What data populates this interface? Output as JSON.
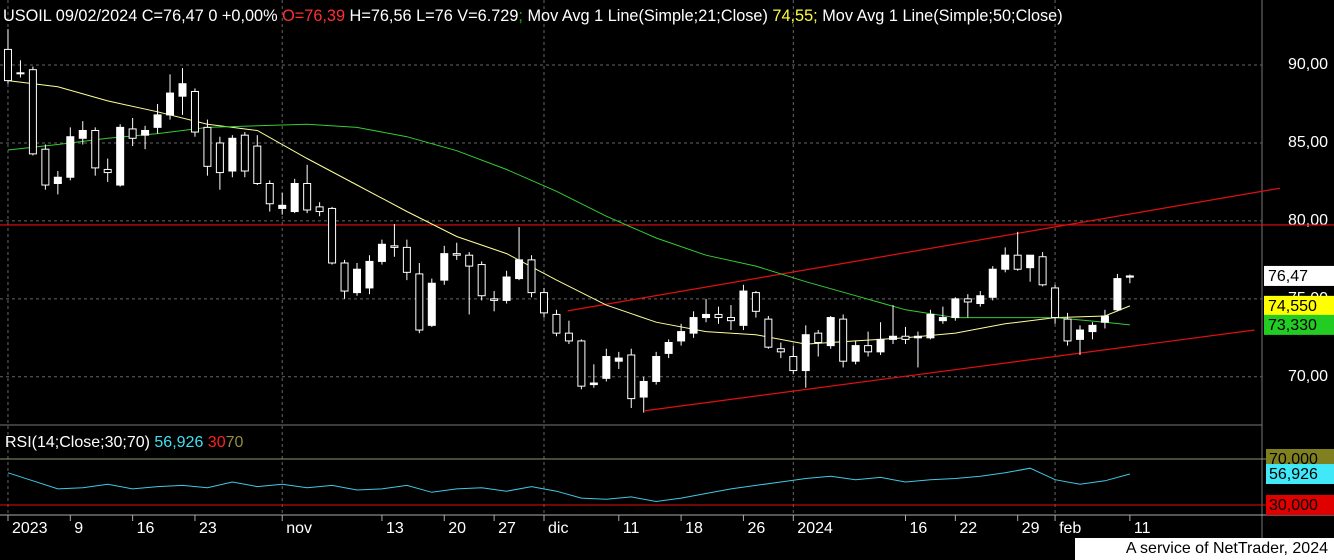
{
  "chart_data": {
    "type": "candlestick",
    "header": [
      {
        "text": "USOIL 09/02/2024 C=76,47 0 +0,00% ",
        "color": "#ffffff"
      },
      {
        "text": "O=76,39",
        "color": "#ff3030"
      },
      {
        "text": " H=76,56 L=76 V=6.729",
        "color": "#ffffff"
      },
      {
        "text": ";",
        "color": "#00c000"
      },
      {
        "text": " Mov Avg 1 Line(Simple;21;Close) ",
        "color": "#ffffff"
      },
      {
        "text": "74,55",
        "color": "#ffff40"
      },
      {
        "text": ";",
        "color": "#ffff40"
      },
      {
        "text": " Mov Avg 1 Line(Simple;50;Close)",
        "color": "#ffffff"
      }
    ],
    "open": [
      91.0,
      89.5,
      89.7,
      84.6,
      82.4,
      82.8,
      85.3,
      85.8,
      83.3,
      82.3,
      85.9,
      85.5,
      86.0,
      86.8,
      88.0,
      88.3,
      86.0,
      85.0,
      83.2,
      85.5,
      84.8,
      82.4,
      80.8,
      80.6,
      82.4,
      80.9,
      80.8,
      77.3,
      75.4,
      75.7,
      77.4,
      78.4,
      78.3,
      76.6,
      73.3,
      76.2,
      77.9,
      77.8,
      77.2,
      75.0,
      74.9,
      76.3,
      77.5,
      75.4,
      74.0,
      72.8,
      72.3,
      69.5,
      69.9,
      71.0,
      71.4,
      68.7,
      69.7,
      71.5,
      72.3,
      72.8,
      73.8,
      74.0,
      73.8,
      73.3,
      75.4,
      73.7,
      71.8,
      71.3,
      70.4,
      72.8,
      72.0,
      73.7,
      71.0,
      72.0,
      71.6,
      72.4,
      72.6,
      72.5,
      72.5,
      73.6,
      73.8,
      75.0,
      74.7,
      75.1,
      76.9,
      77.8,
      77.0,
      77.7,
      75.7,
      73.7,
      72.4,
      72.9,
      73.5,
      74.3,
      76.39
    ],
    "high": [
      92.3,
      90.3,
      89.9,
      84.9,
      83.2,
      86.0,
      86.4,
      86.0,
      84.0,
      86.2,
      86.6,
      86.1,
      87.5,
      89.4,
      89.8,
      88.5,
      86.5,
      85.4,
      85.5,
      85.7,
      85.5,
      82.6,
      81.8,
      82.7,
      83.6,
      81.2,
      80.9,
      77.5,
      77.3,
      77.8,
      78.8,
      79.8,
      78.8,
      77.3,
      76.3,
      78.4,
      78.6,
      78.0,
      77.4,
      75.5,
      76.8,
      79.6,
      77.8,
      75.7,
      74.3,
      73.6,
      72.4,
      70.8,
      71.8,
      71.6,
      71.8,
      70.0,
      71.6,
      72.4,
      73.4,
      74.2,
      75.0,
      74.5,
      74.6,
      75.9,
      75.5,
      73.9,
      72.2,
      72.0,
      73.3,
      73.0,
      73.9,
      74.0,
      72.3,
      72.9,
      73.5,
      74.6,
      73.2,
      72.9,
      74.3,
      74.5,
      75.1,
      75.3,
      75.5,
      77.1,
      78.3,
      79.3,
      77.8,
      78.0,
      75.9,
      74.1,
      73.3,
      73.5,
      74.3,
      76.6,
      76.56
    ],
    "low": [
      88.8,
      89.2,
      84.2,
      82.0,
      81.7,
      82.6,
      84.9,
      82.9,
      82.5,
      82.2,
      84.8,
      84.6,
      85.6,
      86.5,
      86.8,
      85.4,
      82.9,
      82.0,
      82.8,
      82.8,
      82.3,
      80.6,
      80.4,
      80.5,
      80.5,
      80.3,
      77.2,
      75.0,
      75.2,
      75.3,
      77.2,
      77.7,
      76.2,
      72.8,
      73.2,
      75.9,
      77.5,
      74.0,
      74.9,
      74.2,
      74.7,
      76.2,
      75.1,
      73.8,
      72.6,
      72.1,
      69.2,
      69.3,
      69.7,
      70.5,
      68.0,
      67.7,
      69.5,
      71.2,
      72.0,
      72.5,
      73.5,
      73.4,
      73.0,
      73.0,
      73.8,
      71.8,
      71.2,
      70.2,
      69.3,
      71.3,
      71.8,
      70.6,
      70.8,
      71.3,
      71.4,
      72.1,
      72.1,
      70.6,
      72.4,
      73.4,
      73.6,
      73.8,
      74.5,
      74.9,
      76.7,
      76.8,
      76.1,
      75.8,
      73.4,
      72.0,
      71.4,
      72.4,
      73.1,
      74.2,
      76
    ],
    "close": [
      89.0,
      89.5,
      84.3,
      82.3,
      82.8,
      85.4,
      85.8,
      83.4,
      83.1,
      86.0,
      85.3,
      85.8,
      86.8,
      88.2,
      88.8,
      85.7,
      83.5,
      83.1,
      85.3,
      83.2,
      82.4,
      81.1,
      81.0,
      82.4,
      80.7,
      80.6,
      77.3,
      75.5,
      76.9,
      77.4,
      78.5,
      78.3,
      76.7,
      73.0,
      76.0,
      77.9,
      77.8,
      77.1,
      75.2,
      74.9,
      76.4,
      77.5,
      75.4,
      74.1,
      72.8,
      72.3,
      69.4,
      69.6,
      71.3,
      71.2,
      68.6,
      69.7,
      71.3,
      72.2,
      72.9,
      73.8,
      74.0,
      73.8,
      73.6,
      75.5,
      74.2,
      71.9,
      71.6,
      70.4,
      72.7,
      72.2,
      73.8,
      71.0,
      72.0,
      71.6,
      72.4,
      72.6,
      72.4,
      72.6,
      74.0,
      73.8,
      75.0,
      74.8,
      75.2,
      76.9,
      77.8,
      76.9,
      77.8,
      75.9,
      73.8,
      72.3,
      73.0,
      73.3,
      73.9,
      76.3,
      76.47
    ],
    "xlim": [
      -0.64,
      100.6
    ],
    "xticks": [
      {
        "value": 0,
        "label": "2023",
        "major": true
      },
      {
        "value": 5,
        "label": "9"
      },
      {
        "value": 10,
        "label": "16"
      },
      {
        "value": 15,
        "label": "23"
      },
      {
        "value": 22,
        "label": "nov",
        "major": true
      },
      {
        "value": 30,
        "label": "13"
      },
      {
        "value": 35,
        "label": "20"
      },
      {
        "value": 39,
        "label": "27"
      },
      {
        "value": 43,
        "label": "dic",
        "major": true
      },
      {
        "value": 49,
        "label": "11"
      },
      {
        "value": 54,
        "label": "18"
      },
      {
        "value": 59,
        "label": "26"
      },
      {
        "value": 63,
        "label": "2024",
        "major": true
      },
      {
        "value": 72,
        "label": "16"
      },
      {
        "value": 76,
        "label": "22"
      },
      {
        "value": 81,
        "label": "29"
      },
      {
        "value": 84,
        "label": "feb",
        "major": true
      },
      {
        "value": 90,
        "label": "11"
      }
    ],
    "ylim": [
      67.1,
      94.17
    ],
    "yticks": [
      {
        "value": 70,
        "label": "70,00"
      },
      {
        "value": 75,
        "label": "75,00"
      },
      {
        "value": 80,
        "label": "80,00"
      },
      {
        "value": 85,
        "label": "85,00"
      },
      {
        "value": 90,
        "label": "90,00"
      }
    ],
    "grid": true,
    "series": [
      {
        "color": "#ffff99",
        "x": [
          0,
          4,
          8,
          12,
          16,
          20,
          24,
          28,
          32,
          36,
          40,
          44,
          48,
          52,
          56,
          60,
          64,
          68,
          72,
          76,
          80,
          84,
          88,
          90
        ],
        "values": [
          89.0,
          88.6,
          87.7,
          87.0,
          86.2,
          85.8,
          84.0,
          82.3,
          80.6,
          79.0,
          77.9,
          76.2,
          74.6,
          73.5,
          72.9,
          72.7,
          72.1,
          72.3,
          72.5,
          72.8,
          73.4,
          73.8,
          73.9,
          74.55
        ]
      },
      {
        "color": "#33cc33",
        "x": [
          0,
          4,
          8,
          12,
          16,
          20,
          24,
          28,
          32,
          36,
          40,
          44,
          48,
          52,
          56,
          60,
          64,
          68,
          72,
          76,
          80,
          84,
          88,
          90
        ],
        "values": [
          84.55,
          84.9,
          85.3,
          85.6,
          86.0,
          86.1,
          86.2,
          86.0,
          85.4,
          84.5,
          83.3,
          81.9,
          80.3,
          78.9,
          77.8,
          77.1,
          76.1,
          75.2,
          74.3,
          73.8,
          73.8,
          73.8,
          73.5,
          73.33
        ]
      }
    ],
    "price_labels": [
      {
        "value": 76.47,
        "label": "76,47",
        "color": "#ffffff"
      },
      {
        "value": 74.55,
        "label": "74,550",
        "color": "#ffff00"
      },
      {
        "value": 73.33,
        "label": "73,330",
        "color": "#22cc22"
      }
    ],
    "hlines": [
      {
        "value": 79.74,
        "color": "#e01010"
      }
    ],
    "trendlines": [
      {
        "x": [
          44.9,
          102.05
        ],
        "values": [
          74.23,
          82.1
        ],
        "color": "#e01010"
      },
      {
        "x": [
          51.1,
          100.0
        ],
        "values": [
          67.82,
          73.0
        ],
        "color": "#e01010"
      }
    ],
    "rsi": {
      "title": [
        {
          "text": "RSI(14;Close;30;70) ",
          "color": "#ffffff"
        },
        {
          "text": "56,926",
          "color": "#40e0f0"
        },
        {
          "text": " 30",
          "color": "#ff2020"
        },
        {
          "text": "70",
          "color": "#909040"
        }
      ],
      "ylim": [
        23.9,
        86.5
      ],
      "color": "#40c8e8",
      "x": [
        0,
        2,
        4,
        6,
        8,
        10,
        12,
        14,
        16,
        18,
        20,
        22,
        24,
        26,
        28,
        30,
        32,
        34,
        36,
        38,
        40,
        42,
        44,
        46,
        48,
        50,
        52,
        54,
        56,
        58,
        60,
        62,
        64,
        66,
        68,
        70,
        72,
        74,
        76,
        78,
        80,
        82,
        84,
        86,
        88,
        90
      ],
      "values": [
        58,
        51,
        44,
        45,
        48,
        44,
        46,
        47,
        45,
        50,
        46,
        48,
        45,
        47,
        43,
        44,
        47,
        41,
        44,
        45,
        42,
        46,
        42,
        36,
        35,
        37,
        33,
        36,
        40,
        44,
        47,
        50,
        53,
        55,
        52,
        54,
        50,
        52,
        53,
        55,
        58,
        62,
        52,
        48,
        51,
        56.926
      ],
      "levels": [
        {
          "value": 70,
          "color": "#889966"
        },
        {
          "value": 30,
          "color": "#e01010"
        }
      ],
      "labels": [
        {
          "value": 70,
          "label": "70,000",
          "color": "#808020"
        },
        {
          "value": 56.926,
          "label": "56,926",
          "color": "#40e8f8"
        },
        {
          "value": 30,
          "label": "30,000",
          "color": "#e00000"
        }
      ]
    },
    "footer": "A service of NetTrader, 2024"
  }
}
